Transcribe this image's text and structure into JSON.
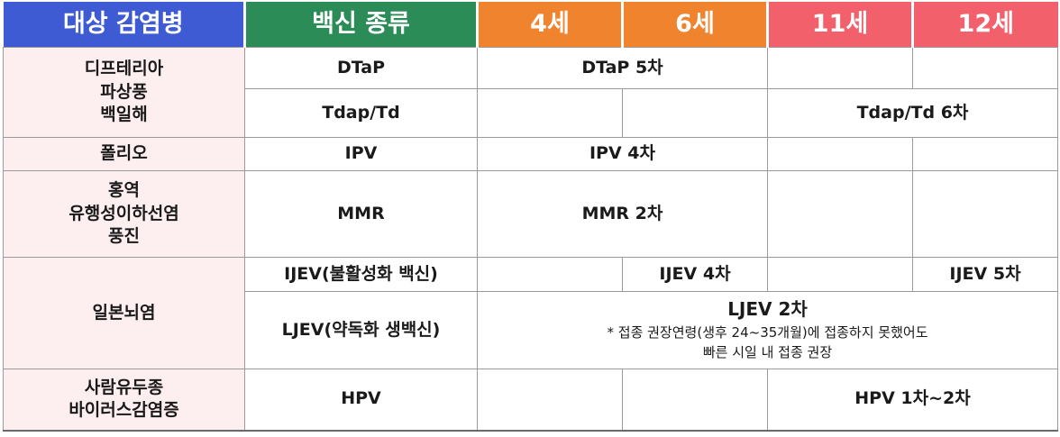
{
  "header": {
    "disease": "대상 감염병",
    "vaccine": "백신 종류",
    "age4": "4세",
    "age6": "6세",
    "age11": "11세",
    "age12": "12세"
  },
  "colors": {
    "disease_header": "#3f5bd3",
    "vaccine_header": "#2b8c57",
    "age_orange": "#f0842e",
    "age_pink": "#f2606c",
    "disease_cell_bg": "#fdeef0"
  },
  "rows": {
    "dtp": {
      "disease_lines": [
        "디프테리아",
        "파상풍",
        "백일해"
      ],
      "vaccine1": "DTaP",
      "dose1": "DTaP 5차",
      "vaccine2": "Tdap/Td",
      "dose2": "Tdap/Td 6차"
    },
    "polio": {
      "disease": "폴리오",
      "vaccine": "IPV",
      "dose": "IPV 4차"
    },
    "mmr": {
      "disease_lines": [
        "홍역",
        "유행성이하선염",
        "풍진"
      ],
      "vaccine": "MMR",
      "dose": "MMR 2차"
    },
    "je": {
      "disease": "일본뇌염",
      "vaccine1": "IJEV(불활성화 백신)",
      "dose1a": "IJEV 4차",
      "dose1b": "IJEV 5차",
      "vaccine2": "LJEV(약독화 생백신)",
      "dose2": "LJEV 2차",
      "note_lines": [
        "* 접종 권장연령(생후 24~35개월)에 접종하지 못했어도",
        "빠른 시일 내 접종 권장"
      ]
    },
    "hpv": {
      "disease_lines": [
        "사람유두종",
        "바이러스감염증"
      ],
      "vaccine": "HPV",
      "dose": "HPV 1차~2차"
    }
  }
}
